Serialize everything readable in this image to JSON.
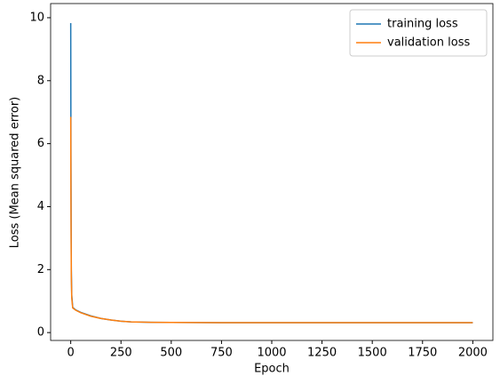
{
  "chart_data": {
    "type": "line",
    "xlabel": "Epoch",
    "ylabel": "Loss (Mean squared error)",
    "x": [
      0,
      1,
      2,
      3,
      5,
      10,
      25,
      50,
      100,
      150,
      200,
      250,
      300,
      400,
      500,
      750,
      1000,
      1500,
      2000
    ],
    "series": [
      {
        "name": "training loss",
        "color": "#1f77b4",
        "values": [
          9.83,
          6.0,
          3.5,
          2.0,
          1.2,
          0.8,
          0.72,
          0.64,
          0.53,
          0.45,
          0.4,
          0.36,
          0.34,
          0.325,
          0.32,
          0.315,
          0.315,
          0.315,
          0.315
        ]
      },
      {
        "name": "validation loss",
        "color": "#ff7f0e",
        "values": [
          6.85,
          4.5,
          3.0,
          1.8,
          1.1,
          0.78,
          0.71,
          0.63,
          0.52,
          0.45,
          0.4,
          0.36,
          0.34,
          0.325,
          0.32,
          0.315,
          0.315,
          0.315,
          0.315
        ]
      }
    ],
    "xlim": [
      -100,
      2100
    ],
    "xticks": [
      0,
      250,
      500,
      750,
      1000,
      1250,
      1500,
      1750,
      2000
    ],
    "ylim": [
      -0.25,
      10.45
    ],
    "yticks": [
      0,
      2,
      4,
      6,
      8,
      10
    ],
    "grid": false,
    "legend": "upper right"
  }
}
